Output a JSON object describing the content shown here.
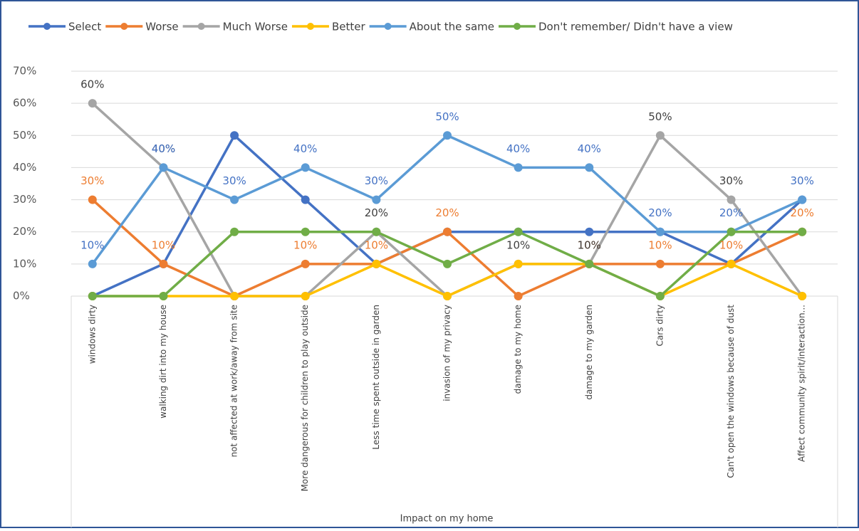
{
  "chart_data": {
    "type": "line",
    "x_label": "Impact on my home",
    "categories": [
      "windows dirty",
      "walking dirt  into my house",
      "not affected at work/away from site",
      "More dangerous for children to play outside",
      "Less time spent outside in garden",
      "invasion of my privacy",
      "damage to my home",
      "damage to my garden",
      "Cars dirty",
      "Can't open the windows because of dust",
      "Affect community spirit/interaction..."
    ],
    "ylim": [
      0,
      70
    ],
    "yticks": [
      {
        "value": 0,
        "label": "0%"
      },
      {
        "value": 10,
        "label": "10%"
      },
      {
        "value": 20,
        "label": "20%"
      },
      {
        "value": 30,
        "label": "30%"
      },
      {
        "value": 40,
        "label": "40%"
      },
      {
        "value": 50,
        "label": "50%"
      },
      {
        "value": 60,
        "label": "60%"
      },
      {
        "value": 70,
        "label": "70%"
      }
    ],
    "grid": true,
    "legend": "top",
    "series": [
      {
        "name": "Select",
        "color": "#4472c4",
        "values": [
          0,
          10,
          50,
          30,
          10,
          20,
          20,
          20,
          20,
          10,
          30
        ]
      },
      {
        "name": "Worse",
        "color": "#ed7d31",
        "label_color": "#ed7d31",
        "values": [
          30,
          10,
          0,
          10,
          10,
          20,
          0,
          10,
          10,
          10,
          20
        ],
        "value_labels": [
          "30%",
          "10%",
          null,
          "10%",
          "10%",
          "20%",
          null,
          "10%",
          "10%",
          "10%",
          "20%"
        ]
      },
      {
        "name": "Much Worse",
        "color": "#a5a5a5",
        "label_color": "#404040",
        "values": [
          60,
          40,
          0,
          0,
          20,
          0,
          10,
          10,
          50,
          30,
          0
        ],
        "value_labels": [
          "60%",
          "40%",
          null,
          null,
          "20%",
          null,
          "10%",
          "10%",
          "50%",
          "30%",
          null
        ]
      },
      {
        "name": "Better",
        "color": "#ffc000",
        "values": [
          0,
          0,
          0,
          0,
          10,
          0,
          10,
          10,
          0,
          10,
          0
        ]
      },
      {
        "name": "About the same",
        "color": "#5b9bd5",
        "label_color": "#4472c4",
        "values": [
          10,
          40,
          30,
          40,
          30,
          50,
          40,
          40,
          20,
          20,
          30
        ],
        "value_labels": [
          "10%",
          "40%",
          "30%",
          "40%",
          "30%",
          "50%",
          "40%",
          "40%",
          "20%",
          "20%",
          "30%"
        ]
      },
      {
        "name": "Don't remember/ Didn't have a view",
        "color": "#70ad47",
        "values": [
          0,
          0,
          20,
          20,
          20,
          10,
          20,
          10,
          0,
          20,
          20
        ]
      }
    ]
  }
}
